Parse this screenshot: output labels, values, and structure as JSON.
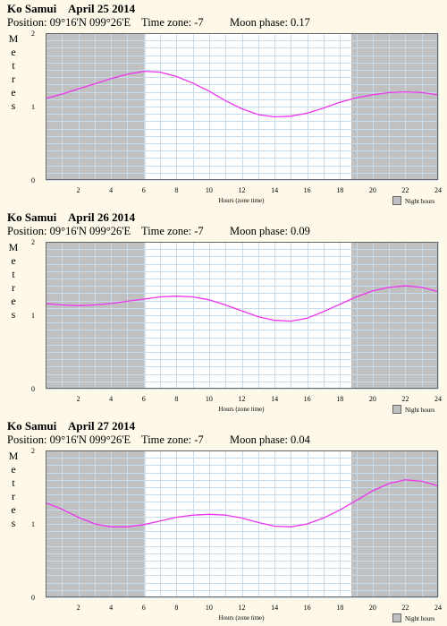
{
  "xlabel": "Hours (zone time)",
  "legend_label": "Night hours",
  "ylabel_letters": [
    "M",
    "e",
    "t",
    "r",
    "e",
    "s"
  ],
  "colors": {
    "curve": "#ee33ee",
    "night": "#c0c0c0",
    "grid": "#c8dcec",
    "day_bg": "#ffffff",
    "page_bg": "#fdf8e8"
  },
  "chart_data": [
    {
      "type": "line",
      "location": "Ko Samui",
      "date": "April 25 2014",
      "position_label": "Position: 09°16'N 099°26'E",
      "timezone_label": "Time zone: -7",
      "moon_label": "Moon phase: 0.17",
      "xlabel": "Hours (zone time)",
      "ylabel": "Metres",
      "xlim": [
        0,
        24
      ],
      "ylim": [
        0,
        2
      ],
      "xticks": [
        "2",
        "4",
        "6",
        "8",
        "10",
        "12",
        "14",
        "16",
        "18",
        "20",
        "22",
        "24"
      ],
      "yticks": [
        "0",
        "1",
        "2"
      ],
      "night": [
        [
          0,
          6.1
        ],
        [
          18.7,
          24
        ]
      ],
      "legend": "Night hours",
      "series": [
        {
          "x": [
            0,
            1,
            2,
            3,
            4,
            5,
            6,
            7,
            8,
            9,
            10,
            11,
            12,
            13,
            14,
            15,
            16,
            17,
            18,
            19,
            20,
            21,
            22,
            23,
            24
          ],
          "y": [
            1.11,
            1.17,
            1.24,
            1.31,
            1.38,
            1.44,
            1.48,
            1.47,
            1.41,
            1.32,
            1.21,
            1.08,
            0.97,
            0.89,
            0.86,
            0.87,
            0.91,
            0.98,
            1.06,
            1.12,
            1.16,
            1.19,
            1.2,
            1.19,
            1.16
          ]
        }
      ]
    },
    {
      "type": "line",
      "location": "Ko Samui",
      "date": "April 26 2014",
      "position_label": "Position: 09°16'N 099°26'E",
      "timezone_label": "Time zone: -7",
      "moon_label": "Moon phase: 0.09",
      "xlabel": "Hours (zone time)",
      "ylabel": "Metres",
      "xlim": [
        0,
        24
      ],
      "ylim": [
        0,
        2
      ],
      "xticks": [
        "2",
        "4",
        "6",
        "8",
        "10",
        "12",
        "14",
        "16",
        "18",
        "20",
        "22",
        "24"
      ],
      "yticks": [
        "0",
        "1",
        "2"
      ],
      "night": [
        [
          0,
          6.1
        ],
        [
          18.7,
          24
        ]
      ],
      "legend": "Night hours",
      "series": [
        {
          "x": [
            0,
            1,
            2,
            3,
            4,
            5,
            6,
            7,
            8,
            9,
            10,
            11,
            12,
            13,
            14,
            15,
            16,
            17,
            18,
            19,
            20,
            21,
            22,
            23,
            24
          ],
          "y": [
            1.16,
            1.14,
            1.13,
            1.14,
            1.16,
            1.19,
            1.22,
            1.25,
            1.26,
            1.25,
            1.21,
            1.14,
            1.06,
            0.98,
            0.93,
            0.92,
            0.96,
            1.05,
            1.15,
            1.25,
            1.33,
            1.38,
            1.4,
            1.38,
            1.32
          ]
        }
      ]
    },
    {
      "type": "line",
      "location": "Ko Samui",
      "date": "April 27 2014",
      "position_label": "Position: 09°16'N 099°26'E",
      "timezone_label": "Time zone: -7",
      "moon_label": "Moon phase: 0.04",
      "xlabel": "Hours (zone time)",
      "ylabel": "Metres",
      "xlim": [
        0,
        24
      ],
      "ylim": [
        0,
        2
      ],
      "xticks": [
        "2",
        "4",
        "6",
        "8",
        "10",
        "12",
        "14",
        "16",
        "18",
        "20",
        "22",
        "24"
      ],
      "yticks": [
        "0",
        "1",
        "2"
      ],
      "night": [
        [
          0,
          6.1
        ],
        [
          18.7,
          24
        ]
      ],
      "legend": "Night hours",
      "series": [
        {
          "x": [
            0,
            1,
            2,
            3,
            4,
            5,
            6,
            7,
            8,
            9,
            10,
            11,
            12,
            13,
            14,
            15,
            16,
            17,
            18,
            19,
            20,
            21,
            22,
            23,
            24
          ],
          "y": [
            1.29,
            1.2,
            1.09,
            1.0,
            0.96,
            0.96,
            0.99,
            1.04,
            1.09,
            1.12,
            1.13,
            1.12,
            1.08,
            1.02,
            0.97,
            0.96,
            1.0,
            1.08,
            1.19,
            1.32,
            1.45,
            1.55,
            1.6,
            1.58,
            1.52
          ]
        }
      ]
    }
  ]
}
